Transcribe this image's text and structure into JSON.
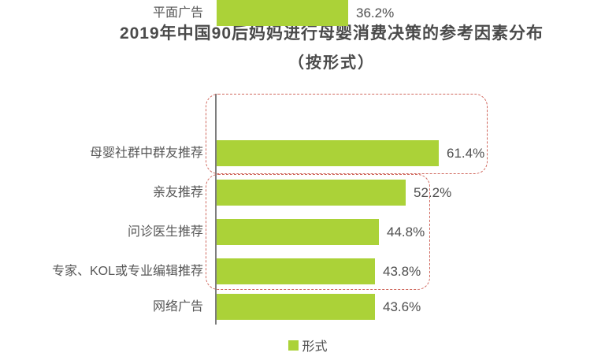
{
  "title": {
    "line1": "2019年中国90后妈妈进行母婴消费决策的参考因素分布",
    "line2": "（按形式）"
  },
  "chart_data": {
    "type": "bar",
    "orientation": "horizontal",
    "title": "2019年中国90后妈妈进行母婴消费决策的参考因素分布（按形式）",
    "categories": [
      "母婴社群中群友推荐",
      "亲友推荐",
      "问诊医生推荐",
      "专家、KOL或专业编辑推荐",
      "网络广告",
      "平面广告"
    ],
    "values": [
      61.4,
      52.2,
      44.8,
      43.8,
      43.6,
      36.2
    ],
    "value_labels": [
      "61.4%",
      "52.2%",
      "44.8%",
      "43.8%",
      "43.6%",
      "36.2%"
    ],
    "xlim": [
      0,
      70
    ],
    "grid": false,
    "legend": {
      "label": "形式",
      "position": "bottom"
    },
    "highlight_groups": [
      {
        "rows": [
          0,
          1
        ],
        "style": "red-dashed-rounded-outline"
      },
      {
        "rows": [
          2,
          3,
          4
        ],
        "style": "red-dashed-rounded-outline"
      }
    ]
  },
  "colors": {
    "bar": "#abd238",
    "highlight_outline": "#d0685e",
    "title_text": "#4a4a4a",
    "label_text": "#575757",
    "value_text": "#4f4f4f",
    "axis_line": "#7d7d7d",
    "background": "#ffffff"
  }
}
